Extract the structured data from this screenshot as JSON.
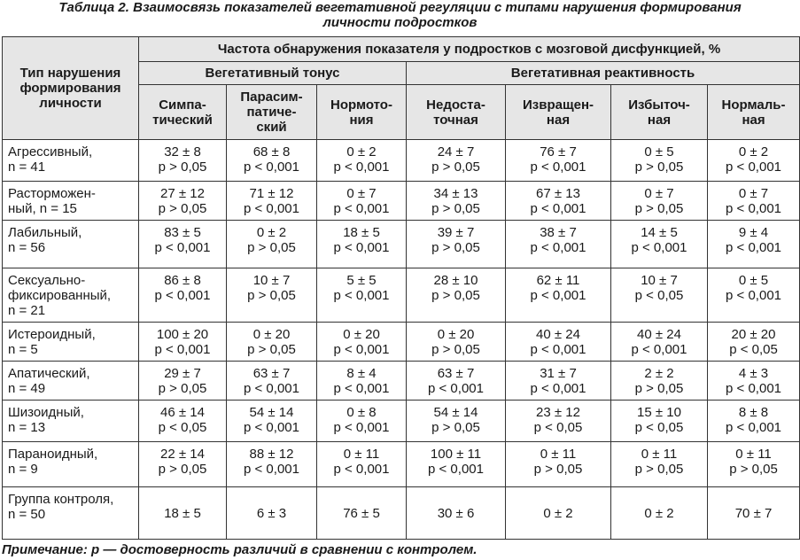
{
  "caption": {
    "line1": "Таблица 2. Взаимосвязь показателей вегетативной регуляции с типами нарушения формирования",
    "line2": "личности подростков"
  },
  "header": {
    "row_label": [
      "Тип нарушения",
      "формирования",
      "личности"
    ],
    "frequency": "Частота обнаружения показателя у подростков с мозговой дисфункцией, %",
    "group_tone": "Вегетативный тонус",
    "group_reactivity": "Вегетативная реактивность",
    "columns": [
      [
        "Симпа-",
        "тический"
      ],
      [
        "Парасим-",
        "патиче-",
        "ский"
      ],
      [
        "Нормото-",
        "ния"
      ],
      [
        "Недоста-",
        "точная"
      ],
      [
        "Извращен-",
        "ная"
      ],
      [
        "Избыточ-",
        "ная"
      ],
      [
        "Нормаль-",
        "ная"
      ]
    ]
  },
  "rows": [
    {
      "type": [
        "Агрессивный,",
        "n = 41"
      ],
      "cells": [
        [
          "32 ± 8",
          "р > 0,05"
        ],
        [
          "68 ± 8",
          "р < 0,001"
        ],
        [
          "0 ± 2",
          "р < 0,001"
        ],
        [
          "24 ± 7",
          "р > 0,05"
        ],
        [
          "76 ± 7",
          "р < 0,001"
        ],
        [
          "0 ± 5",
          "р > 0,05"
        ],
        [
          "0 ± 2",
          "р < 0,001"
        ]
      ]
    },
    {
      "type": [
        "Расторможен-",
        "ный, n = 15"
      ],
      "cells": [
        [
          "27 ± 12",
          "р > 0,05"
        ],
        [
          "71 ± 12",
          "р < 0,001"
        ],
        [
          "0 ± 7",
          "р < 0,001"
        ],
        [
          "34 ± 13",
          "р > 0,05"
        ],
        [
          "67 ± 13",
          "р < 0,001"
        ],
        [
          "0 ± 7",
          "р > 0,05"
        ],
        [
          "0 ± 7",
          "р < 0,001"
        ]
      ]
    },
    {
      "type": [
        "Лабильный,",
        "n = 56"
      ],
      "cells": [
        [
          "83 ± 5",
          "р < 0,001"
        ],
        [
          "0 ± 2",
          "р > 0,05"
        ],
        [
          "18 ± 5",
          "р < 0,001"
        ],
        [
          "39 ± 7",
          "р > 0,05"
        ],
        [
          "38 ± 7",
          "р < 0,001"
        ],
        [
          "14 ± 5",
          "р < 0,001"
        ],
        [
          "9 ± 4",
          "р < 0,001"
        ]
      ]
    },
    {
      "type": [
        "Сексуально-",
        "фиксированный,",
        "n = 21"
      ],
      "cells": [
        [
          "86 ± 8",
          "р < 0,001"
        ],
        [
          "10 ± 7",
          "р > 0,05"
        ],
        [
          "5 ± 5",
          "р < 0,001"
        ],
        [
          "28 ± 10",
          "р > 0,05"
        ],
        [
          "62 ± 11",
          "р < 0,001"
        ],
        [
          "10 ± 7",
          "р < 0,05"
        ],
        [
          "0 ± 5",
          "р < 0,001"
        ]
      ]
    },
    {
      "type": [
        "Истероидный,",
        "n = 5"
      ],
      "cells": [
        [
          "100 ± 20",
          "р < 0,001"
        ],
        [
          "0 ± 20",
          "р > 0,05"
        ],
        [
          "0 ± 20",
          "р < 0,001"
        ],
        [
          "0 ± 20",
          "р > 0,05"
        ],
        [
          "40 ± 24",
          "р < 0,001"
        ],
        [
          "40 ± 24",
          "р < 0,001"
        ],
        [
          "20 ± 20",
          "р < 0,05"
        ]
      ]
    },
    {
      "type": [
        "Апатический,",
        "n = 49"
      ],
      "cells": [
        [
          "29 ± 7",
          "р > 0,05"
        ],
        [
          "63 ± 7",
          "р < 0,001"
        ],
        [
          "8 ± 4",
          "р < 0,001"
        ],
        [
          "63 ± 7",
          "р < 0,001"
        ],
        [
          "31 ± 7",
          "р < 0,001"
        ],
        [
          "2 ± 2",
          "р > 0,05"
        ],
        [
          "4 ± 3",
          "р < 0,001"
        ]
      ]
    },
    {
      "type": [
        "Шизоидный,",
        "n = 13"
      ],
      "cells": [
        [
          "46 ± 14",
          "р < 0,05"
        ],
        [
          "54 ± 14",
          "р < 0,001"
        ],
        [
          "0 ± 8",
          "р < 0,001"
        ],
        [
          "54 ± 14",
          "р > 0,05"
        ],
        [
          "23 ± 12",
          "р < 0,05"
        ],
        [
          "15 ± 10",
          "р < 0,05"
        ],
        [
          "8 ± 8",
          "р < 0,001"
        ]
      ]
    },
    {
      "type": [
        "Параноидный,",
        "n = 9"
      ],
      "cells": [
        [
          "22 ± 14",
          "р > 0,05"
        ],
        [
          "88 ± 12",
          "р < 0,001"
        ],
        [
          "0 ± 11",
          "р < 0,001"
        ],
        [
          "100 ± 11",
          "р < 0,001"
        ],
        [
          "0 ± 11",
          "р > 0,05"
        ],
        [
          "0 ± 11",
          "р > 0,05"
        ],
        [
          "0 ± 11",
          "р > 0,05"
        ]
      ]
    },
    {
      "type": [
        "Группа контроля,",
        "n = 50"
      ],
      "control": true,
      "cells": [
        [
          "18 ± 5"
        ],
        [
          "6 ± 3"
        ],
        [
          "76 ± 5"
        ],
        [
          "30 ± 6"
        ],
        [
          "0 ± 2"
        ],
        [
          "0 ± 2"
        ],
        [
          "70 ± 7"
        ]
      ]
    }
  ],
  "note": "Примечание: р — достоверность различий в сравнении с контролем."
}
